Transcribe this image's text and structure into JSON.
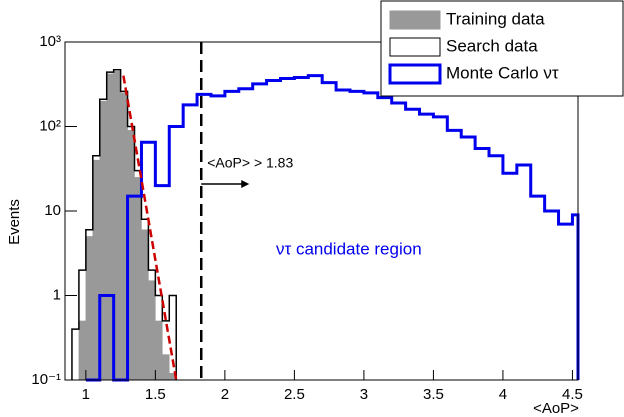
{
  "chart_data": {
    "type": "histogram",
    "x_label": "<AoP>",
    "y_label": "Events",
    "xlim": [
      0.85,
      4.54
    ],
    "ylim": [
      0.1,
      1000
    ],
    "log_y": true,
    "xticks": [
      1,
      1.5,
      2,
      2.5,
      3,
      3.5,
      4,
      4.5
    ],
    "yticks": [
      {
        "value": 0.1,
        "label": "10⁻¹"
      },
      1,
      10,
      {
        "value": 100,
        "label": "10²"
      },
      {
        "value": 1000,
        "label": "10³"
      }
    ],
    "series": [
      {
        "name": "Training data",
        "color": "#999999",
        "style": "filled",
        "bins": [
          0.95,
          1.0,
          1.05,
          1.1,
          1.15,
          1.2,
          1.25,
          1.3,
          1.35,
          1.4,
          1.45,
          1.5,
          1.55,
          1.6,
          1.65
        ],
        "values": [
          0.5,
          5,
          40,
          200,
          420,
          450,
          250,
          90,
          25,
          6,
          1.5,
          0.5,
          0.2,
          0.12
        ]
      },
      {
        "name": "Search data",
        "color": "#000000",
        "style": "step",
        "bins": [
          0.9,
          0.95,
          1.0,
          1.05,
          1.1,
          1.15,
          1.2,
          1.25,
          1.3,
          1.35,
          1.4,
          1.45,
          1.5,
          1.55,
          1.6,
          1.65
        ],
        "values": [
          0.4,
          2,
          6,
          45,
          210,
          440,
          470,
          260,
          100,
          30,
          8,
          2,
          1,
          0.5,
          1
        ]
      },
      {
        "name": "Monte Carlo ντ",
        "color": "#0000ee",
        "style": "step",
        "bins": [
          1.0,
          1.1,
          1.2,
          1.3,
          1.4,
          1.5,
          1.6,
          1.7,
          1.8,
          1.9,
          2.0,
          2.1,
          2.2,
          2.3,
          2.4,
          2.5,
          2.6,
          2.7,
          2.8,
          2.9,
          3.0,
          3.1,
          3.2,
          3.3,
          3.4,
          3.5,
          3.6,
          3.7,
          3.8,
          3.9,
          4.0,
          4.1,
          4.2,
          4.3,
          4.4,
          4.5,
          4.54
        ],
        "values": [
          0,
          1,
          0,
          15,
          65,
          20,
          100,
          180,
          240,
          230,
          260,
          280,
          320,
          350,
          370,
          380,
          400,
          330,
          270,
          260,
          250,
          220,
          190,
          160,
          140,
          130,
          90,
          75,
          55,
          45,
          28,
          35,
          15,
          10,
          7,
          9
        ]
      }
    ],
    "fit": {
      "color": "#cc0000",
      "x": [
        1.27,
        1.65
      ],
      "values": [
        400,
        0.1
      ]
    },
    "cut": {
      "value": 1.83,
      "label": "<AoP>  >  1.83"
    },
    "region_label": "ντ candidate region"
  }
}
